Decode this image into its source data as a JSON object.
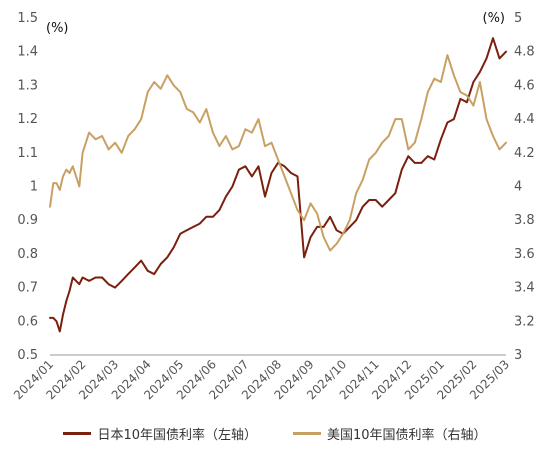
{
  "chart_data": {
    "type": "line",
    "title": "",
    "x_categories": [
      "2024/01",
      "2024/02",
      "2024/03",
      "2024/04",
      "2024/05",
      "2024/06",
      "2024/07",
      "2024/08",
      "2024/09",
      "2024/10",
      "2024/11",
      "2024/12",
      "2025/01",
      "2025/02",
      "2025/03"
    ],
    "left_axis": {
      "unit_label": "(%)",
      "ylim": [
        0.5,
        1.5
      ],
      "ticks": [
        "0.5",
        "0.6",
        "0.7",
        "0.8",
        "0.9",
        "1",
        "1.1",
        "1.2",
        "1.3",
        "1.4",
        "1.5"
      ]
    },
    "right_axis": {
      "unit_label": "(%)",
      "ylim": [
        3,
        5
      ],
      "ticks": [
        "3",
        "3.2",
        "3.4",
        "3.6",
        "3.8",
        "4",
        "4.2",
        "4.4",
        "4.6",
        "4.8",
        "5"
      ]
    },
    "legend_position": "bottom",
    "grid": false,
    "series": [
      {
        "name": "日本10年国债利率（左轴）",
        "axis": "left",
        "color": "#7B1F0E",
        "points": [
          [
            0.0,
            0.61
          ],
          [
            0.1,
            0.61
          ],
          [
            0.2,
            0.6
          ],
          [
            0.3,
            0.57
          ],
          [
            0.4,
            0.62
          ],
          [
            0.5,
            0.66
          ],
          [
            0.6,
            0.69
          ],
          [
            0.7,
            0.73
          ],
          [
            0.8,
            0.72
          ],
          [
            0.9,
            0.71
          ],
          [
            1.0,
            0.73
          ],
          [
            1.2,
            0.72
          ],
          [
            1.4,
            0.73
          ],
          [
            1.6,
            0.73
          ],
          [
            1.8,
            0.71
          ],
          [
            2.0,
            0.7
          ],
          [
            2.2,
            0.72
          ],
          [
            2.4,
            0.74
          ],
          [
            2.6,
            0.76
          ],
          [
            2.8,
            0.78
          ],
          [
            3.0,
            0.75
          ],
          [
            3.2,
            0.74
          ],
          [
            3.4,
            0.77
          ],
          [
            3.6,
            0.79
          ],
          [
            3.8,
            0.82
          ],
          [
            4.0,
            0.86
          ],
          [
            4.2,
            0.87
          ],
          [
            4.4,
            0.88
          ],
          [
            4.6,
            0.89
          ],
          [
            4.8,
            0.91
          ],
          [
            5.0,
            0.91
          ],
          [
            5.2,
            0.93
          ],
          [
            5.4,
            0.97
          ],
          [
            5.6,
            1.0
          ],
          [
            5.8,
            1.05
          ],
          [
            6.0,
            1.06
          ],
          [
            6.2,
            1.03
          ],
          [
            6.4,
            1.06
          ],
          [
            6.6,
            0.97
          ],
          [
            6.8,
            1.04
          ],
          [
            7.0,
            1.07
          ],
          [
            7.2,
            1.06
          ],
          [
            7.4,
            1.04
          ],
          [
            7.6,
            1.03
          ],
          [
            7.8,
            0.79
          ],
          [
            8.0,
            0.85
          ],
          [
            8.2,
            0.88
          ],
          [
            8.4,
            0.88
          ],
          [
            8.6,
            0.91
          ],
          [
            8.8,
            0.87
          ],
          [
            9.0,
            0.86
          ],
          [
            9.2,
            0.88
          ],
          [
            9.4,
            0.9
          ],
          [
            9.6,
            0.94
          ],
          [
            9.8,
            0.96
          ],
          [
            10.0,
            0.96
          ],
          [
            10.2,
            0.94
          ],
          [
            10.4,
            0.96
          ],
          [
            10.6,
            0.98
          ],
          [
            10.8,
            1.05
          ],
          [
            11.0,
            1.09
          ],
          [
            11.2,
            1.07
          ],
          [
            11.4,
            1.07
          ],
          [
            11.6,
            1.09
          ],
          [
            11.8,
            1.08
          ],
          [
            12.0,
            1.14
          ],
          [
            12.2,
            1.19
          ],
          [
            12.4,
            1.2
          ],
          [
            12.6,
            1.26
          ],
          [
            12.8,
            1.25
          ],
          [
            13.0,
            1.31
          ],
          [
            13.2,
            1.34
          ],
          [
            13.4,
            1.38
          ],
          [
            13.6,
            1.44
          ],
          [
            13.8,
            1.38
          ],
          [
            14.0,
            1.4
          ]
        ]
      },
      {
        "name": "美国10年国债利率（右轴）",
        "axis": "right",
        "color": "#C9A063",
        "points": [
          [
            0.0,
            3.88
          ],
          [
            0.1,
            4.02
          ],
          [
            0.2,
            4.02
          ],
          [
            0.3,
            3.98
          ],
          [
            0.4,
            4.06
          ],
          [
            0.5,
            4.1
          ],
          [
            0.6,
            4.08
          ],
          [
            0.7,
            4.12
          ],
          [
            0.8,
            4.06
          ],
          [
            0.9,
            4.0
          ],
          [
            1.0,
            4.2
          ],
          [
            1.2,
            4.32
          ],
          [
            1.4,
            4.28
          ],
          [
            1.6,
            4.3
          ],
          [
            1.8,
            4.22
          ],
          [
            2.0,
            4.26
          ],
          [
            2.2,
            4.2
          ],
          [
            2.4,
            4.3
          ],
          [
            2.6,
            4.34
          ],
          [
            2.8,
            4.4
          ],
          [
            3.0,
            4.56
          ],
          [
            3.2,
            4.62
          ],
          [
            3.4,
            4.58
          ],
          [
            3.6,
            4.66
          ],
          [
            3.8,
            4.6
          ],
          [
            4.0,
            4.56
          ],
          [
            4.2,
            4.46
          ],
          [
            4.4,
            4.44
          ],
          [
            4.6,
            4.38
          ],
          [
            4.8,
            4.46
          ],
          [
            5.0,
            4.32
          ],
          [
            5.2,
            4.24
          ],
          [
            5.4,
            4.3
          ],
          [
            5.6,
            4.22
          ],
          [
            5.8,
            4.24
          ],
          [
            6.0,
            4.34
          ],
          [
            6.2,
            4.32
          ],
          [
            6.4,
            4.4
          ],
          [
            6.6,
            4.24
          ],
          [
            6.8,
            4.26
          ],
          [
            7.0,
            4.16
          ],
          [
            7.2,
            4.06
          ],
          [
            7.4,
            3.96
          ],
          [
            7.6,
            3.86
          ],
          [
            7.8,
            3.8
          ],
          [
            8.0,
            3.9
          ],
          [
            8.2,
            3.84
          ],
          [
            8.4,
            3.7
          ],
          [
            8.6,
            3.62
          ],
          [
            8.8,
            3.66
          ],
          [
            9.0,
            3.72
          ],
          [
            9.2,
            3.8
          ],
          [
            9.4,
            3.96
          ],
          [
            9.6,
            4.04
          ],
          [
            9.8,
            4.16
          ],
          [
            10.0,
            4.2
          ],
          [
            10.2,
            4.26
          ],
          [
            10.4,
            4.3
          ],
          [
            10.6,
            4.4
          ],
          [
            10.8,
            4.4
          ],
          [
            11.0,
            4.22
          ],
          [
            11.2,
            4.26
          ],
          [
            11.4,
            4.4
          ],
          [
            11.6,
            4.56
          ],
          [
            11.8,
            4.64
          ],
          [
            12.0,
            4.62
          ],
          [
            12.2,
            4.78
          ],
          [
            12.4,
            4.66
          ],
          [
            12.6,
            4.56
          ],
          [
            12.8,
            4.54
          ],
          [
            13.0,
            4.48
          ],
          [
            13.2,
            4.62
          ],
          [
            13.4,
            4.4
          ],
          [
            13.6,
            4.3
          ],
          [
            13.8,
            4.22
          ],
          [
            14.0,
            4.26
          ]
        ]
      }
    ]
  }
}
